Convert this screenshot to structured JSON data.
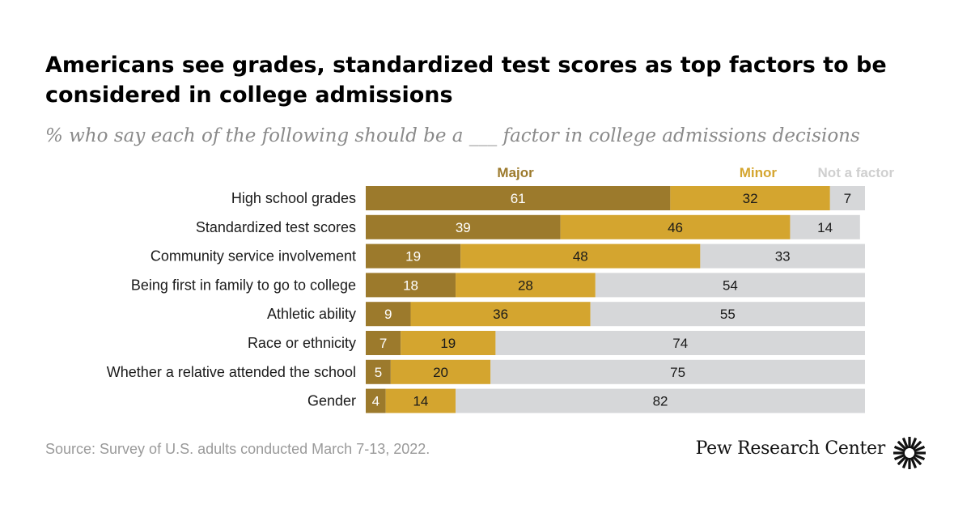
{
  "header": {
    "title": "Americans see grades, standardized test scores as top factors to be considered in college admissions",
    "subtitle": "% who say each of the following should be a ___ factor in college admissions decisions"
  },
  "footer": {
    "source": "Source: Survey of U.S. adults conducted March 7-13, 2022.",
    "brand": "Pew Research Center"
  },
  "colors": {
    "major": "#9c7a2c",
    "minor": "#d4a52f",
    "not": "#d6d7d9",
    "major_label": "#9c7a2c",
    "minor_label": "#d4a52f",
    "not_label": "#cfcfcf"
  },
  "chart_data": {
    "type": "bar",
    "orientation": "horizontal-stacked",
    "title": "Americans see grades, standardized test scores as top factors to be considered in college admissions",
    "subtitle": "% who say each of the following should be a ___ factor in college admissions decisions",
    "xlim": [
      0,
      100
    ],
    "legend": [
      "Major",
      "Minor",
      "Not a factor"
    ],
    "categories": [
      "High school grades",
      "Standardized test scores",
      "Community service involvement",
      "Being first in family to go to college",
      "Athletic ability",
      "Race or ethnicity",
      "Whether a relative attended the school",
      "Gender"
    ],
    "series": [
      {
        "name": "Major",
        "values": [
          61,
          39,
          19,
          18,
          9,
          7,
          5,
          4
        ]
      },
      {
        "name": "Minor",
        "values": [
          32,
          46,
          48,
          28,
          36,
          19,
          20,
          14
        ]
      },
      {
        "name": "Not a factor",
        "values": [
          7,
          14,
          33,
          54,
          55,
          74,
          75,
          82
        ]
      }
    ]
  }
}
